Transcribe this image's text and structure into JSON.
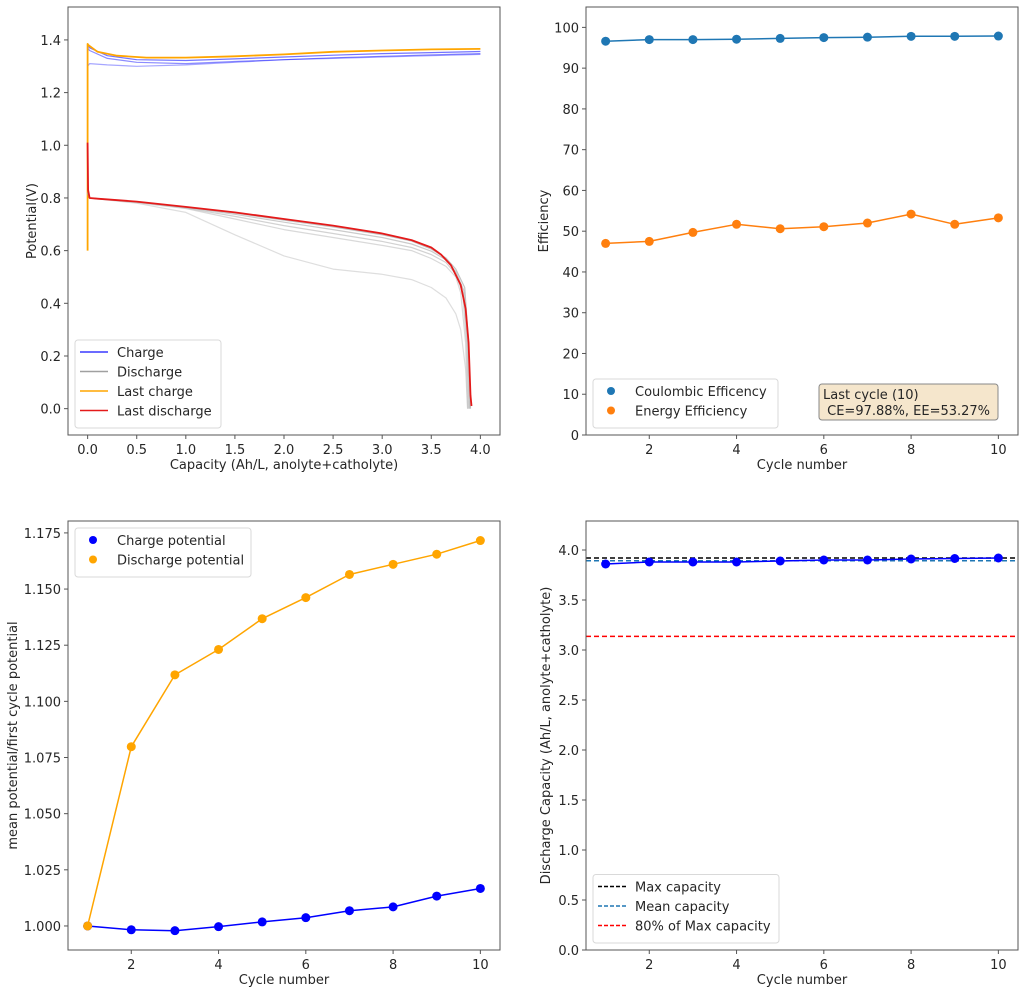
{
  "chart_data": [
    {
      "id": "potential-vs-capacity",
      "type": "line",
      "title": "",
      "xlabel": "Capacity (Ah/L, anolyte+catholyte)",
      "ylabel": "Potential(V)",
      "xlim": [
        -0.2,
        4.2
      ],
      "ylim": [
        -0.1,
        1.525
      ],
      "xticks": [
        0.0,
        0.5,
        1.0,
        1.5,
        2.0,
        2.5,
        3.0,
        3.5,
        4.0
      ],
      "xtick_labels": [
        "0.0",
        "0.5",
        "1.0",
        "1.5",
        "2.0",
        "2.5",
        "3.0",
        "3.5",
        "4.0"
      ],
      "yticks": [
        0.0,
        0.2,
        0.4,
        0.6,
        0.8,
        1.0,
        1.2,
        1.4
      ],
      "ytick_labels": [
        "0.0",
        "0.2",
        "0.4",
        "0.6",
        "0.8",
        "1.0",
        "1.2",
        "1.4"
      ],
      "grid": false,
      "legend": {
        "placement": "lower-left",
        "entries": [
          {
            "label": "Charge",
            "color": "#3a3aff"
          },
          {
            "label": "Discharge",
            "color": "#a0a0a0"
          },
          {
            "label": "Last charge",
            "color": "#ffa500"
          },
          {
            "label": "Last discharge",
            "color": "#e41a1a"
          }
        ]
      },
      "series": [
        {
          "name": "Charge (cycle 1)",
          "role": "charge",
          "color": "#0000ff",
          "opacity": 0.35,
          "x": [
            0,
            0.02,
            0.2,
            0.5,
            1.0,
            1.5,
            2.0,
            2.5,
            3.0,
            3.5,
            4.0
          ],
          "y": [
            1.3,
            1.31,
            1.305,
            1.3,
            1.305,
            1.315,
            1.325,
            1.33,
            1.335,
            1.34,
            1.345
          ]
        },
        {
          "name": "Charge (cycles 2-5)",
          "role": "charge",
          "color": "#0000ff",
          "opacity": 0.45,
          "x": [
            0,
            0.02,
            0.2,
            0.5,
            1.0,
            1.5,
            2.0,
            2.5,
            3.0,
            3.5,
            4.0
          ],
          "y": [
            1.37,
            1.36,
            1.33,
            1.315,
            1.31,
            1.318,
            1.325,
            1.332,
            1.338,
            1.343,
            1.348
          ]
        },
        {
          "name": "Charge (cycles 6-9)",
          "role": "charge",
          "color": "#0000ff",
          "opacity": 0.55,
          "x": [
            0,
            0.02,
            0.2,
            0.5,
            1.0,
            1.5,
            2.0,
            2.5,
            3.0,
            3.5,
            4.0
          ],
          "y": [
            1.38,
            1.37,
            1.34,
            1.325,
            1.322,
            1.328,
            1.335,
            1.342,
            1.348,
            1.352,
            1.356
          ]
        },
        {
          "name": "Last charge",
          "role": "last-charge",
          "color": "#ffa500",
          "opacity": 1,
          "x": [
            0,
            0,
            0.01,
            0.1,
            0.3,
            0.6,
            1.0,
            1.5,
            2.0,
            2.5,
            3.0,
            3.5,
            4.0
          ],
          "y": [
            0.6,
            1.385,
            1.38,
            1.355,
            1.34,
            1.333,
            1.333,
            1.338,
            1.345,
            1.355,
            1.36,
            1.364,
            1.366
          ]
        },
        {
          "name": "Discharge (cycle 1)",
          "role": "discharge",
          "color": "#c8c8c8",
          "opacity": 0.6,
          "x": [
            0,
            0.02,
            0.5,
            1.0,
            1.5,
            2.0,
            2.5,
            3.0,
            3.3,
            3.5,
            3.65,
            3.75,
            3.8,
            3.85,
            3.87
          ],
          "y": [
            0.82,
            0.8,
            0.78,
            0.745,
            0.66,
            0.58,
            0.53,
            0.51,
            0.49,
            0.46,
            0.42,
            0.36,
            0.3,
            0.15,
            0.0
          ]
        },
        {
          "name": "Discharge (cycle 2)",
          "role": "discharge",
          "color": "#c0c0c0",
          "opacity": 0.6,
          "x": [
            0,
            0.02,
            0.5,
            1.0,
            1.5,
            2.0,
            2.5,
            3.0,
            3.3,
            3.5,
            3.65,
            3.75,
            3.8,
            3.85,
            3.87
          ],
          "y": [
            0.82,
            0.8,
            0.782,
            0.76,
            0.72,
            0.68,
            0.65,
            0.62,
            0.6,
            0.57,
            0.54,
            0.5,
            0.44,
            0.25,
            0.0
          ]
        },
        {
          "name": "Discharge (cycle 3)",
          "role": "discharge",
          "color": "#b4b4b4",
          "opacity": 0.6,
          "x": [
            0,
            0.02,
            0.5,
            1.0,
            1.5,
            2.0,
            2.5,
            3.0,
            3.3,
            3.5,
            3.65,
            3.75,
            3.82,
            3.86,
            3.88
          ],
          "y": [
            0.82,
            0.8,
            0.784,
            0.762,
            0.73,
            0.695,
            0.665,
            0.635,
            0.612,
            0.585,
            0.555,
            0.51,
            0.44,
            0.25,
            0.0
          ]
        },
        {
          "name": "Discharge (cycles 4-6)",
          "role": "discharge",
          "color": "#a8a8a8",
          "opacity": 0.6,
          "x": [
            0,
            0.02,
            0.5,
            1.0,
            1.5,
            2.0,
            2.5,
            3.0,
            3.3,
            3.5,
            3.65,
            3.75,
            3.83,
            3.87,
            3.89
          ],
          "y": [
            0.82,
            0.8,
            0.785,
            0.764,
            0.738,
            0.708,
            0.68,
            0.65,
            0.625,
            0.598,
            0.565,
            0.52,
            0.45,
            0.25,
            0.0
          ]
        },
        {
          "name": "Discharge (cycles 7-9)",
          "role": "discharge",
          "color": "#9a9a9a",
          "opacity": 0.6,
          "x": [
            0,
            0.02,
            0.5,
            1.0,
            1.5,
            2.0,
            2.5,
            3.0,
            3.3,
            3.5,
            3.65,
            3.75,
            3.84,
            3.88,
            3.9
          ],
          "y": [
            0.82,
            0.8,
            0.786,
            0.765,
            0.743,
            0.716,
            0.69,
            0.66,
            0.636,
            0.606,
            0.572,
            0.53,
            0.46,
            0.25,
            0.0
          ]
        },
        {
          "name": "Last discharge",
          "role": "last-discharge",
          "color": "#e41a1a",
          "opacity": 1,
          "x": [
            0,
            0.005,
            0.02,
            0.1,
            0.5,
            1.0,
            1.5,
            2.0,
            2.5,
            3.0,
            3.3,
            3.5,
            3.6,
            3.7,
            3.8,
            3.85,
            3.88,
            3.9,
            3.91
          ],
          "y": [
            1.01,
            0.83,
            0.8,
            0.797,
            0.786,
            0.766,
            0.745,
            0.72,
            0.695,
            0.665,
            0.64,
            0.612,
            0.585,
            0.545,
            0.47,
            0.38,
            0.25,
            0.05,
            0.01
          ]
        }
      ]
    },
    {
      "id": "efficiency",
      "type": "line",
      "title": "",
      "xlabel": "Cycle number",
      "ylabel": "Efficiency",
      "xlim": [
        0.55,
        10.45
      ],
      "ylim": [
        0,
        105
      ],
      "xticks": [
        2,
        4,
        6,
        8,
        10
      ],
      "xtick_labels": [
        "2",
        "4",
        "6",
        "8",
        "10"
      ],
      "yticks": [
        0,
        10,
        20,
        30,
        40,
        50,
        60,
        70,
        80,
        90,
        100
      ],
      "ytick_labels": [
        "0",
        "10",
        "20",
        "30",
        "40",
        "50",
        "60",
        "70",
        "80",
        "90",
        "100"
      ],
      "grid": false,
      "x": [
        1,
        2,
        3,
        4,
        5,
        6,
        7,
        8,
        9,
        10
      ],
      "series": [
        {
          "name": "Coulombic Efficency",
          "color": "#1f77b4",
          "values": [
            96.6,
            97.0,
            97.0,
            97.1,
            97.3,
            97.5,
            97.6,
            97.8,
            97.8,
            97.88
          ]
        },
        {
          "name": "Energy Efficiency",
          "color": "#ff7f0e",
          "values": [
            47.0,
            47.5,
            49.7,
            51.7,
            50.6,
            51.1,
            52.0,
            54.2,
            51.7,
            53.27
          ]
        }
      ],
      "legend": {
        "placement": "lower-left",
        "entries": [
          {
            "label": "Coulombic Efficency",
            "color": "#1f77b4"
          },
          {
            "label": "Energy Efficiency",
            "color": "#ff7f0e"
          }
        ]
      },
      "annotation": {
        "placement": "lower-right",
        "line1": "Last cycle (10)",
        "line2": " CE=97.88%, EE=53.27%",
        "bg_color": "#f5e6cc"
      }
    },
    {
      "id": "normalized-potential",
      "type": "line",
      "title": "",
      "xlabel": "Cycle number",
      "ylabel": "mean potential/first cycle potential",
      "xlim": [
        0.55,
        10.45
      ],
      "ylim": [
        0.9893,
        1.1803
      ],
      "xticks": [
        2,
        4,
        6,
        8,
        10
      ],
      "xtick_labels": [
        "2",
        "4",
        "6",
        "8",
        "10"
      ],
      "yticks": [
        1.0,
        1.025,
        1.05,
        1.075,
        1.1,
        1.125,
        1.15,
        1.175
      ],
      "ytick_labels": [
        "1.000",
        "1.025",
        "1.050",
        "1.075",
        "1.100",
        "1.125",
        "1.150",
        "1.175"
      ],
      "grid": false,
      "x": [
        1,
        2,
        3,
        4,
        5,
        6,
        7,
        8,
        9,
        10
      ],
      "series": [
        {
          "name": "Charge potential",
          "color": "#0000ff",
          "values": [
            1.0,
            0.9983,
            0.9979,
            0.9997,
            1.0018,
            1.0037,
            1.0068,
            1.0085,
            1.0133,
            1.0167
          ]
        },
        {
          "name": "Discharge potential",
          "color": "#ffa500",
          "values": [
            1.0,
            1.0798,
            1.1118,
            1.1231,
            1.1368,
            1.1462,
            1.1565,
            1.161,
            1.1655,
            1.1716
          ]
        }
      ],
      "legend": {
        "placement": "upper-left",
        "entries": [
          {
            "label": "Charge potential",
            "color": "#0000ff"
          },
          {
            "label": "Discharge potential",
            "color": "#ffa500"
          }
        ]
      }
    },
    {
      "id": "discharge-capacity",
      "type": "line",
      "title": "",
      "xlabel": "Cycle number",
      "ylabel": "Discharge Capacity (Ah/L, anolyte+catholyte)",
      "xlim": [
        0.55,
        10.45
      ],
      "ylim": [
        0,
        4.29
      ],
      "xticks": [
        2,
        4,
        6,
        8,
        10
      ],
      "xtick_labels": [
        "2",
        "4",
        "6",
        "8",
        "10"
      ],
      "yticks": [
        0.0,
        0.5,
        1.0,
        1.5,
        2.0,
        2.5,
        3.0,
        3.5,
        4.0
      ],
      "ytick_labels": [
        "0.0",
        "0.5",
        "1.0",
        "1.5",
        "2.0",
        "2.5",
        "3.0",
        "3.5",
        "4.0"
      ],
      "grid": false,
      "x": [
        1,
        2,
        3,
        4,
        5,
        6,
        7,
        8,
        9,
        10
      ],
      "series": [
        {
          "name": "Discharge capacity",
          "color": "#0000ff",
          "values": [
            3.86,
            3.88,
            3.88,
            3.88,
            3.89,
            3.9,
            3.9,
            3.91,
            3.915,
            3.92
          ]
        }
      ],
      "hlines": [
        {
          "name": "Max capacity",
          "value": 3.92,
          "color": "#000000",
          "style": "dashed"
        },
        {
          "name": "Mean capacity",
          "value": 3.893,
          "color": "#1f77b4",
          "style": "dashed"
        },
        {
          "name": "80% of Max capacity",
          "value": 3.136,
          "color": "#ff0000",
          "style": "dashed"
        }
      ],
      "legend": {
        "placement": "lower-left",
        "entries": [
          {
            "label": "Max capacity",
            "color": "#000000"
          },
          {
            "label": "Mean capacity",
            "color": "#1f77b4"
          },
          {
            "label": "80% of Max capacity",
            "color": "#ff0000"
          }
        ]
      }
    }
  ]
}
